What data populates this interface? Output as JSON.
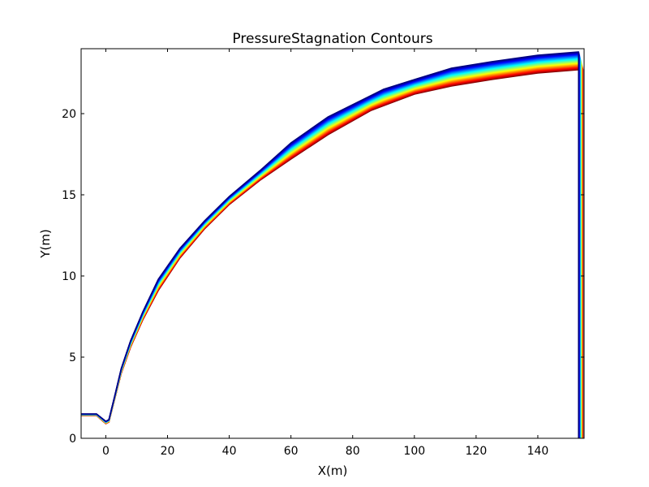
{
  "chart_data": {
    "type": "line",
    "title": "PressureStagnation Contours",
    "xlabel": "X(m)",
    "ylabel": "Y(m)",
    "xlim": [
      -8,
      155
    ],
    "ylim": [
      0,
      24
    ],
    "x_ticks": [
      0,
      20,
      40,
      60,
      80,
      100,
      120,
      140
    ],
    "y_ticks": [
      0,
      5,
      10,
      15,
      20
    ],
    "x_tick_labels": [
      "0",
      "20",
      "40",
      "60",
      "80",
      100,
      "120",
      "140"
    ],
    "y_tick_labels": [
      "0",
      "5",
      "10",
      "15",
      "20"
    ],
    "grid": false,
    "legend": "none",
    "colormap": "jet",
    "contour_count": 30,
    "contour_band": {
      "lower_edge": {
        "x": [
          -8,
          -3,
          0,
          1,
          3,
          5,
          8,
          12,
          17,
          24,
          32,
          40,
          50,
          60,
          72,
          86,
          100,
          112,
          125,
          140,
          153
        ],
        "y": [
          1.4,
          1.4,
          0.9,
          1.0,
          2.5,
          4.0,
          5.6,
          7.3,
          9.1,
          11.1,
          12.9,
          14.4,
          15.9,
          17.2,
          18.7,
          20.2,
          21.2,
          21.7,
          22.1,
          22.5,
          22.7
        ]
      },
      "upper_edge": {
        "x": [
          -8,
          -3,
          0,
          1,
          3,
          5,
          8,
          12,
          17,
          24,
          32,
          40,
          50,
          60,
          72,
          90,
          100,
          112,
          125,
          140,
          153
        ],
        "y": [
          1.5,
          1.5,
          1.05,
          1.15,
          2.7,
          4.3,
          6.0,
          7.8,
          9.8,
          11.7,
          13.4,
          14.9,
          16.5,
          18.2,
          19.8,
          21.5,
          22.1,
          22.8,
          23.2,
          23.6,
          23.8
        ]
      },
      "outlet_x": [
        153.2,
        154.6
      ],
      "outlet_y_bottom": 0
    }
  }
}
